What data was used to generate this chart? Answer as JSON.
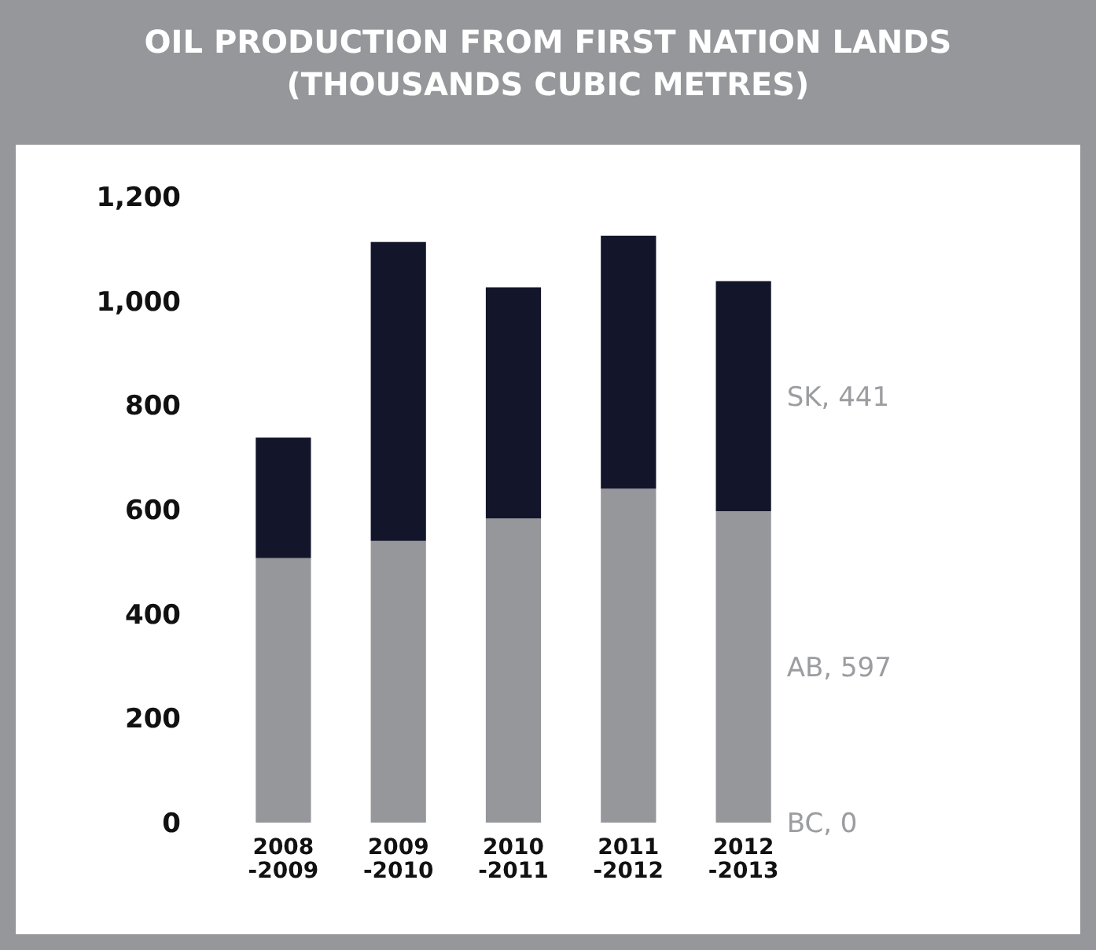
{
  "chart_data": {
    "type": "bar",
    "title": "OIL PRODUCTION FROM FIRST NATION LANDS\n(THOUSANDS CUBIC METRES)",
    "categories": [
      "2008\n-2009",
      "2009\n-2010",
      "2010\n-2011",
      "2011\n-2012",
      "2012\n-2013"
    ],
    "stacked": true,
    "series": [
      {
        "name": "BC, 0",
        "color": "#96979b",
        "values": [
          0,
          0,
          0,
          0,
          0
        ]
      },
      {
        "name": "AB, 597",
        "color": "#96979b",
        "values": [
          507,
          540,
          583,
          640,
          597
        ]
      },
      {
        "name": "SK, 441",
        "color": "#13152b",
        "values": [
          231,
          573,
          443,
          485,
          441
        ]
      }
    ],
    "ylim": [
      0,
      1200
    ],
    "yticks": [
      0,
      200,
      400,
      600,
      800,
      {
        "value": 1000,
        "label": "1,000"
      },
      {
        "value": 1200,
        "label": "1,200"
      }
    ],
    "grid": false
  }
}
